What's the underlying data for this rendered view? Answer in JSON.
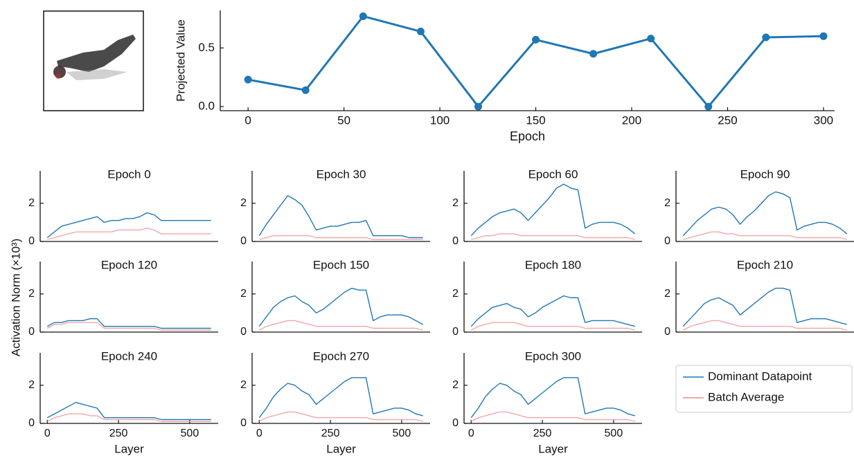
{
  "figure": {
    "ylabel": "Activation Norm (×10³)"
  },
  "chart_data": [
    {
      "type": "line",
      "xlabel": "Epoch",
      "ylabel": "Projected Value",
      "color": "#1f77b4",
      "markers": true,
      "x": [
        0,
        30,
        60,
        90,
        120,
        150,
        180,
        210,
        240,
        270,
        300
      ],
      "values": [
        0.23,
        0.14,
        0.77,
        0.64,
        0.0,
        0.57,
        0.45,
        0.58,
        0.0,
        0.59,
        0.6
      ],
      "xlim": [
        -14.5,
        305.8
      ],
      "xticks": [
        0,
        50,
        100,
        150,
        200,
        250,
        300
      ],
      "ylim": [
        -0.035,
        0.82
      ],
      "yticks": [
        {
          "value": 0,
          "label": "0.0"
        },
        0.5
      ]
    },
    {
      "type": "line",
      "title": "Epoch 0",
      "xlim": [
        -25,
        600
      ],
      "ylim": [
        0,
        3.7
      ],
      "yticks": [
        0,
        2
      ],
      "x": [
        0,
        25,
        50,
        75,
        100,
        125,
        150,
        175,
        200,
        225,
        250,
        275,
        300,
        325,
        350,
        375,
        400,
        425,
        450,
        475,
        500,
        525,
        550,
        575
      ],
      "series": [
        {
          "name": "Dominant Datapoint",
          "color": "#1f77b4",
          "values": [
            0.2,
            0.5,
            0.8,
            0.9,
            1.0,
            1.1,
            1.2,
            1.3,
            1.0,
            1.1,
            1.1,
            1.2,
            1.2,
            1.3,
            1.5,
            1.4,
            1.1,
            1.1,
            1.1,
            1.1,
            1.1,
            1.1,
            1.1,
            1.1
          ]
        },
        {
          "name": "Batch Average",
          "color": "#f08a8a",
          "values": [
            0.1,
            0.2,
            0.3,
            0.4,
            0.5,
            0.5,
            0.5,
            0.5,
            0.5,
            0.5,
            0.6,
            0.6,
            0.6,
            0.6,
            0.7,
            0.6,
            0.4,
            0.4,
            0.4,
            0.4,
            0.4,
            0.4,
            0.4,
            0.4
          ]
        }
      ]
    },
    {
      "type": "line",
      "title": "Epoch 30",
      "xlim": [
        -25,
        600
      ],
      "ylim": [
        0,
        3.7
      ],
      "yticks": [
        0,
        2
      ],
      "x": [
        0,
        25,
        50,
        75,
        100,
        125,
        150,
        175,
        200,
        225,
        250,
        275,
        300,
        325,
        350,
        375,
        400,
        425,
        450,
        475,
        500,
        525,
        550,
        575
      ],
      "series": [
        {
          "name": "Dominant Datapoint",
          "color": "#1f77b4",
          "values": [
            0.3,
            0.9,
            1.4,
            1.9,
            2.4,
            2.2,
            1.9,
            1.3,
            0.6,
            0.7,
            0.8,
            0.8,
            0.9,
            1.0,
            1.0,
            1.1,
            0.3,
            0.3,
            0.3,
            0.3,
            0.3,
            0.2,
            0.2,
            0.2
          ]
        },
        {
          "name": "Batch Average",
          "color": "#f08a8a",
          "values": [
            0.1,
            0.2,
            0.3,
            0.3,
            0.3,
            0.3,
            0.3,
            0.3,
            0.2,
            0.2,
            0.2,
            0.2,
            0.2,
            0.2,
            0.2,
            0.2,
            0.1,
            0.1,
            0.1,
            0.1,
            0.1,
            0.1,
            0.1,
            0.1
          ]
        }
      ]
    },
    {
      "type": "line",
      "title": "Epoch 60",
      "xlim": [
        -25,
        600
      ],
      "ylim": [
        0,
        3.7
      ],
      "yticks": [
        0,
        2
      ],
      "x": [
        0,
        25,
        50,
        75,
        100,
        125,
        150,
        175,
        200,
        225,
        250,
        275,
        300,
        325,
        350,
        375,
        400,
        425,
        450,
        475,
        500,
        525,
        550,
        575
      ],
      "series": [
        {
          "name": "Dominant Datapoint",
          "color": "#1f77b4",
          "values": [
            0.3,
            0.7,
            1.0,
            1.3,
            1.5,
            1.6,
            1.7,
            1.5,
            1.1,
            1.5,
            1.9,
            2.3,
            2.8,
            3.0,
            2.8,
            2.7,
            0.7,
            0.9,
            1.0,
            1.0,
            1.0,
            0.9,
            0.7,
            0.4
          ]
        },
        {
          "name": "Batch Average",
          "color": "#f08a8a",
          "values": [
            0.1,
            0.2,
            0.3,
            0.3,
            0.4,
            0.4,
            0.4,
            0.3,
            0.3,
            0.3,
            0.3,
            0.3,
            0.3,
            0.3,
            0.3,
            0.3,
            0.2,
            0.2,
            0.2,
            0.2,
            0.2,
            0.2,
            0.2,
            0.1
          ]
        }
      ]
    },
    {
      "type": "line",
      "title": "Epoch 90",
      "xlim": [
        -25,
        600
      ],
      "ylim": [
        0,
        3.7
      ],
      "yticks": [
        0,
        2
      ],
      "x": [
        0,
        25,
        50,
        75,
        100,
        125,
        150,
        175,
        200,
        225,
        250,
        275,
        300,
        325,
        350,
        375,
        400,
        425,
        450,
        475,
        500,
        525,
        550,
        575
      ],
      "series": [
        {
          "name": "Dominant Datapoint",
          "color": "#1f77b4",
          "values": [
            0.3,
            0.7,
            1.1,
            1.4,
            1.7,
            1.8,
            1.7,
            1.4,
            0.9,
            1.3,
            1.6,
            2.0,
            2.4,
            2.6,
            2.5,
            2.3,
            0.6,
            0.8,
            0.9,
            1.0,
            1.0,
            0.9,
            0.7,
            0.4
          ]
        },
        {
          "name": "Batch Average",
          "color": "#f08a8a",
          "values": [
            0.1,
            0.2,
            0.3,
            0.4,
            0.5,
            0.5,
            0.4,
            0.4,
            0.3,
            0.3,
            0.3,
            0.3,
            0.3,
            0.3,
            0.3,
            0.3,
            0.2,
            0.2,
            0.2,
            0.2,
            0.2,
            0.2,
            0.2,
            0.1
          ]
        }
      ]
    },
    {
      "type": "line",
      "title": "Epoch 120",
      "xlim": [
        -25,
        600
      ],
      "ylim": [
        0,
        3.7
      ],
      "yticks": [
        0,
        2
      ],
      "x": [
        0,
        25,
        50,
        75,
        100,
        125,
        150,
        175,
        200,
        225,
        250,
        275,
        300,
        325,
        350,
        375,
        400,
        425,
        450,
        475,
        500,
        525,
        550,
        575
      ],
      "series": [
        {
          "name": "Dominant Datapoint",
          "color": "#1f77b4",
          "values": [
            0.3,
            0.5,
            0.5,
            0.6,
            0.6,
            0.6,
            0.7,
            0.7,
            0.3,
            0.3,
            0.3,
            0.3,
            0.3,
            0.3,
            0.3,
            0.3,
            0.2,
            0.2,
            0.2,
            0.2,
            0.2,
            0.2,
            0.2,
            0.2
          ]
        },
        {
          "name": "Batch Average",
          "color": "#f08a8a",
          "values": [
            0.2,
            0.4,
            0.4,
            0.5,
            0.5,
            0.5,
            0.5,
            0.5,
            0.2,
            0.2,
            0.2,
            0.2,
            0.2,
            0.2,
            0.2,
            0.2,
            0.1,
            0.1,
            0.1,
            0.1,
            0.1,
            0.1,
            0.1,
            0.1
          ]
        }
      ]
    },
    {
      "type": "line",
      "title": "Epoch 150",
      "xlim": [
        -25,
        600
      ],
      "ylim": [
        0,
        3.7
      ],
      "yticks": [
        0,
        2
      ],
      "x": [
        0,
        25,
        50,
        75,
        100,
        125,
        150,
        175,
        200,
        225,
        250,
        275,
        300,
        325,
        350,
        375,
        400,
        425,
        450,
        475,
        500,
        525,
        550,
        575
      ],
      "series": [
        {
          "name": "Dominant Datapoint",
          "color": "#1f77b4",
          "values": [
            0.3,
            0.8,
            1.3,
            1.6,
            1.8,
            1.9,
            1.6,
            1.4,
            1.0,
            1.2,
            1.5,
            1.8,
            2.1,
            2.3,
            2.2,
            2.2,
            0.6,
            0.8,
            0.9,
            0.9,
            0.9,
            0.8,
            0.6,
            0.4
          ]
        },
        {
          "name": "Batch Average",
          "color": "#f08a8a",
          "values": [
            0.1,
            0.3,
            0.4,
            0.5,
            0.6,
            0.6,
            0.5,
            0.4,
            0.3,
            0.3,
            0.3,
            0.3,
            0.3,
            0.3,
            0.3,
            0.3,
            0.2,
            0.2,
            0.2,
            0.2,
            0.2,
            0.2,
            0.2,
            0.1
          ]
        }
      ]
    },
    {
      "type": "line",
      "title": "Epoch 180",
      "xlim": [
        -25,
        600
      ],
      "ylim": [
        0,
        3.7
      ],
      "yticks": [
        0,
        2
      ],
      "x": [
        0,
        25,
        50,
        75,
        100,
        125,
        150,
        175,
        200,
        225,
        250,
        275,
        300,
        325,
        350,
        375,
        400,
        425,
        450,
        475,
        500,
        525,
        550,
        575
      ],
      "series": [
        {
          "name": "Dominant Datapoint",
          "color": "#1f77b4",
          "values": [
            0.3,
            0.7,
            1.0,
            1.3,
            1.4,
            1.5,
            1.3,
            1.2,
            0.8,
            1.0,
            1.3,
            1.5,
            1.7,
            1.9,
            1.8,
            1.8,
            0.5,
            0.6,
            0.6,
            0.6,
            0.6,
            0.5,
            0.4,
            0.3
          ]
        },
        {
          "name": "Batch Average",
          "color": "#f08a8a",
          "values": [
            0.1,
            0.3,
            0.4,
            0.5,
            0.5,
            0.5,
            0.5,
            0.4,
            0.3,
            0.3,
            0.3,
            0.3,
            0.3,
            0.3,
            0.3,
            0.3,
            0.2,
            0.2,
            0.2,
            0.2,
            0.2,
            0.2,
            0.2,
            0.1
          ]
        }
      ]
    },
    {
      "type": "line",
      "title": "Epoch 210",
      "xlim": [
        -25,
        600
      ],
      "ylim": [
        0,
        3.7
      ],
      "yticks": [
        0,
        2
      ],
      "x": [
        0,
        25,
        50,
        75,
        100,
        125,
        150,
        175,
        200,
        225,
        250,
        275,
        300,
        325,
        350,
        375,
        400,
        425,
        450,
        475,
        500,
        525,
        550,
        575
      ],
      "series": [
        {
          "name": "Dominant Datapoint",
          "color": "#1f77b4",
          "values": [
            0.3,
            0.7,
            1.1,
            1.5,
            1.7,
            1.8,
            1.6,
            1.4,
            0.9,
            1.2,
            1.5,
            1.8,
            2.1,
            2.3,
            2.3,
            2.2,
            0.5,
            0.6,
            0.7,
            0.7,
            0.7,
            0.6,
            0.5,
            0.4
          ]
        },
        {
          "name": "Batch Average",
          "color": "#f08a8a",
          "values": [
            0.1,
            0.3,
            0.4,
            0.5,
            0.6,
            0.6,
            0.5,
            0.4,
            0.3,
            0.3,
            0.3,
            0.3,
            0.3,
            0.3,
            0.3,
            0.3,
            0.2,
            0.2,
            0.2,
            0.2,
            0.2,
            0.2,
            0.2,
            0.1
          ]
        }
      ]
    },
    {
      "type": "line",
      "title": "Epoch 240",
      "xlim": [
        -25,
        600
      ],
      "ylim": [
        0,
        3.7
      ],
      "yticks": [
        0,
        2
      ],
      "xticks": [
        0,
        250,
        500
      ],
      "xlabel": "Layer",
      "x": [
        0,
        25,
        50,
        75,
        100,
        125,
        150,
        175,
        200,
        225,
        250,
        275,
        300,
        325,
        350,
        375,
        400,
        425,
        450,
        475,
        500,
        525,
        550,
        575
      ],
      "series": [
        {
          "name": "Dominant Datapoint",
          "color": "#1f77b4",
          "values": [
            0.3,
            0.5,
            0.7,
            0.9,
            1.1,
            1.0,
            0.9,
            0.8,
            0.3,
            0.3,
            0.3,
            0.3,
            0.3,
            0.3,
            0.3,
            0.3,
            0.2,
            0.2,
            0.2,
            0.2,
            0.2,
            0.2,
            0.2,
            0.2
          ]
        },
        {
          "name": "Batch Average",
          "color": "#f08a8a",
          "values": [
            0.1,
            0.3,
            0.4,
            0.5,
            0.5,
            0.5,
            0.4,
            0.4,
            0.2,
            0.2,
            0.2,
            0.2,
            0.2,
            0.2,
            0.2,
            0.2,
            0.1,
            0.1,
            0.1,
            0.1,
            0.1,
            0.1,
            0.1,
            0.1
          ]
        }
      ]
    },
    {
      "type": "line",
      "title": "Epoch 270",
      "xlim": [
        -25,
        600
      ],
      "ylim": [
        0,
        3.7
      ],
      "yticks": [
        0,
        2
      ],
      "xticks": [
        0,
        250,
        500
      ],
      "xlabel": "Layer",
      "x": [
        0,
        25,
        50,
        75,
        100,
        125,
        150,
        175,
        200,
        225,
        250,
        275,
        300,
        325,
        350,
        375,
        400,
        425,
        450,
        475,
        500,
        525,
        550,
        575
      ],
      "series": [
        {
          "name": "Dominant Datapoint",
          "color": "#1f77b4",
          "values": [
            0.3,
            0.8,
            1.4,
            1.8,
            2.1,
            2.0,
            1.7,
            1.5,
            1.0,
            1.3,
            1.6,
            1.9,
            2.2,
            2.4,
            2.4,
            2.4,
            0.5,
            0.6,
            0.7,
            0.8,
            0.8,
            0.7,
            0.5,
            0.4
          ]
        },
        {
          "name": "Batch Average",
          "color": "#f08a8a",
          "values": [
            0.1,
            0.3,
            0.4,
            0.5,
            0.6,
            0.6,
            0.5,
            0.4,
            0.3,
            0.3,
            0.3,
            0.3,
            0.3,
            0.3,
            0.3,
            0.3,
            0.2,
            0.2,
            0.2,
            0.2,
            0.2,
            0.2,
            0.2,
            0.1
          ]
        }
      ]
    },
    {
      "type": "line",
      "title": "Epoch 300",
      "xlim": [
        -25,
        600
      ],
      "ylim": [
        0,
        3.7
      ],
      "yticks": [
        0,
        2
      ],
      "xticks": [
        0,
        250,
        500
      ],
      "xlabel": "Layer",
      "x": [
        0,
        25,
        50,
        75,
        100,
        125,
        150,
        175,
        200,
        225,
        250,
        275,
        300,
        325,
        350,
        375,
        400,
        425,
        450,
        475,
        500,
        525,
        550,
        575
      ],
      "series": [
        {
          "name": "Dominant Datapoint",
          "color": "#1f77b4",
          "values": [
            0.3,
            0.8,
            1.4,
            1.8,
            2.1,
            2.0,
            1.7,
            1.5,
            1.0,
            1.3,
            1.6,
            1.9,
            2.2,
            2.4,
            2.4,
            2.4,
            0.5,
            0.6,
            0.7,
            0.8,
            0.8,
            0.7,
            0.5,
            0.4
          ]
        },
        {
          "name": "Batch Average",
          "color": "#f08a8a",
          "values": [
            0.1,
            0.3,
            0.4,
            0.5,
            0.6,
            0.6,
            0.5,
            0.4,
            0.3,
            0.3,
            0.3,
            0.3,
            0.3,
            0.3,
            0.3,
            0.3,
            0.2,
            0.2,
            0.2,
            0.2,
            0.2,
            0.2,
            0.2,
            0.1
          ]
        }
      ]
    }
  ]
}
